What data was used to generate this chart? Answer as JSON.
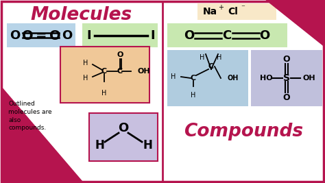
{
  "bg_color": "#ffffff",
  "border_color": "#b5144e",
  "title_molecules": "Molecules",
  "title_compounds": "Compounds",
  "title_color": "#b5144e",
  "box_blue_light": "#b8d4e8",
  "box_green_light": "#c8e8b0",
  "box_peach": "#f0c898",
  "box_lavender": "#c8c0e0",
  "box_blue2": "#b0ccdf",
  "box_lavender2": "#c0c0dc",
  "box_yellow_light": "#f8e8c8",
  "outline_red": "#b5144e",
  "note_text": "Outlined\nmolecules are\nalso\ncompounds.",
  "figsize": [
    4.74,
    2.67
  ],
  "dpi": 100
}
